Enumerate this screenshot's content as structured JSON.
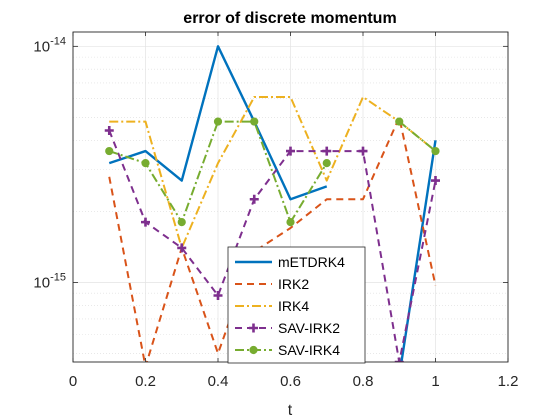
{
  "chart_data": {
    "type": "line",
    "title": "error of discrete momentum",
    "xlabel": "t",
    "ylabel": "",
    "xlim": [
      0,
      1.2
    ],
    "ylim": [
      4.6e-16,
      1.15e-14
    ],
    "yscale": "log",
    "grid": true,
    "minor_grid": true,
    "legend_position": "bottom-center",
    "x_ticks": [
      {
        "value": 0,
        "label": "0"
      },
      {
        "value": 0.2,
        "label": "0.2"
      },
      {
        "value": 0.4,
        "label": "0.4"
      },
      {
        "value": 0.6,
        "label": "0.6"
      },
      {
        "value": 0.8,
        "label": "0.8"
      },
      {
        "value": 1,
        "label": "1"
      },
      {
        "value": 1.2,
        "label": "1.2"
      }
    ],
    "y_ticks": [
      {
        "value": 1e-15,
        "base": "10",
        "exp": "-15"
      },
      {
        "value": 1e-14,
        "base": "10",
        "exp": "-14"
      }
    ],
    "x": [
      0.1,
      0.2,
      0.3,
      0.4,
      0.5,
      0.6,
      0.7,
      0.8,
      0.9,
      1.0
    ],
    "series": [
      {
        "name": "mETDRK4",
        "color": "#0072BD",
        "dash": "",
        "width": 2.4,
        "marker": "none",
        "values": [
          3.2e-15,
          3.6e-15,
          2.7e-15,
          1e-14,
          4.8e-15,
          2.25e-15,
          2.55e-15,
          null,
          4e-16,
          4e-15
        ]
      },
      {
        "name": "IRK2",
        "color": "#D95319",
        "dash": "7,5",
        "width": 2.0,
        "marker": "none",
        "values": [
          2.8e-15,
          4.4e-16,
          1.4e-15,
          5e-16,
          1.35e-15,
          1.7e-15,
          2.25e-15,
          2.25e-15,
          5e-15,
          9.7e-16
        ]
      },
      {
        "name": "IRK4",
        "color": "#EDB120",
        "dash": "9,3,2,3",
        "width": 2.0,
        "marker": "none",
        "values": [
          4.8e-15,
          4.8e-15,
          1.4e-15,
          3.2e-15,
          6.1e-15,
          6.1e-15,
          2.7e-15,
          6.1e-15,
          4.8e-15,
          3.6e-15
        ]
      },
      {
        "name": "SAV-IRK2",
        "color": "#7E2F8E",
        "dash": "7,5",
        "width": 2.0,
        "marker": "plus",
        "values": [
          4.4e-15,
          1.8e-15,
          1.4e-15,
          8.8e-16,
          2.25e-15,
          3.6e-15,
          3.6e-15,
          3.6e-15,
          4.6e-16,
          2.7e-15
        ]
      },
      {
        "name": "SAV-IRK4",
        "color": "#77AC30",
        "dash": "9,3,2,3",
        "width": 2.0,
        "marker": "circle",
        "values": [
          3.6e-15,
          3.2e-15,
          1.8e-15,
          4.8e-15,
          4.8e-15,
          1.8e-15,
          3.2e-15,
          null,
          4.8e-15,
          3.6e-15
        ]
      }
    ]
  }
}
